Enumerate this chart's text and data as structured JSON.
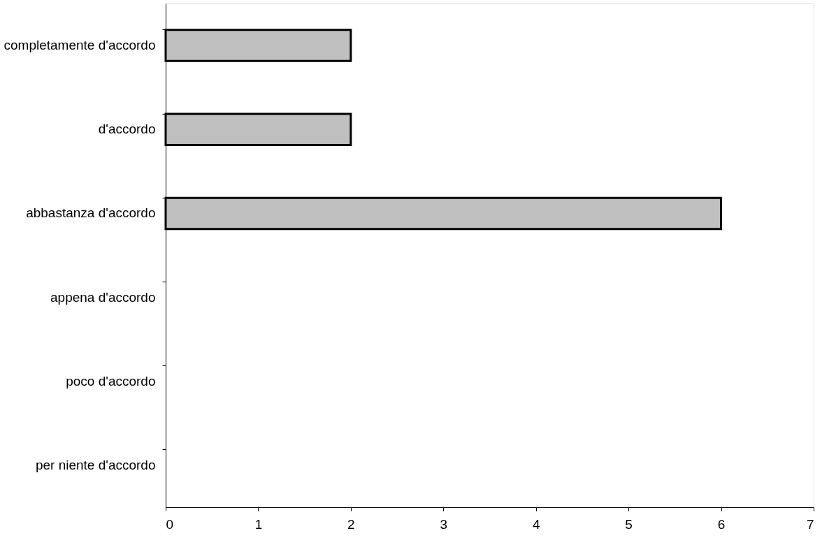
{
  "chart_data": {
    "type": "bar",
    "orientation": "horizontal",
    "categories": [
      "completamente d'accordo",
      "d'accordo",
      "abbastanza d'accordo",
      "appena d'accordo",
      "poco d'accordo",
      "per niente d'accordo"
    ],
    "values": [
      2,
      2,
      6,
      0,
      0,
      0
    ],
    "color": "#c0c0c0",
    "xlim": [
      0,
      7
    ],
    "xticks": [
      0,
      1,
      2,
      3,
      4,
      5,
      6,
      7
    ],
    "grid": false
  }
}
